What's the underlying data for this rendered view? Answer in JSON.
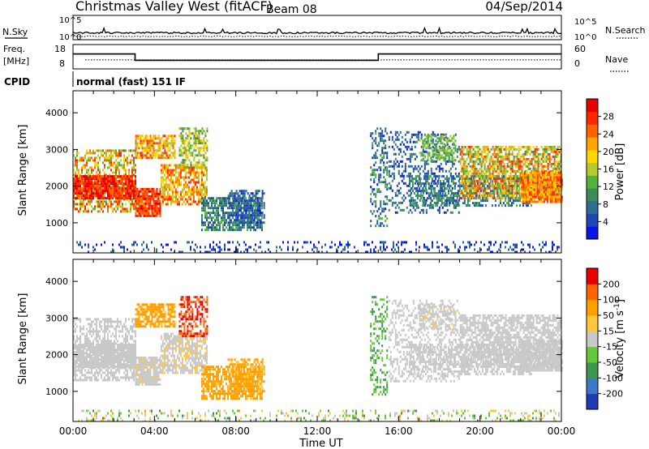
{
  "header": {
    "station": "Christmas Valley West (fitACF)",
    "beam": "Beam 08",
    "date": "04/Sep/2014"
  },
  "noise_panel": {
    "left_label": "N.Sky",
    "right_label": "N.Search",
    "left_ticks": [
      "10^5",
      "10^0"
    ],
    "right_ticks": [
      "10^5",
      "10^0"
    ]
  },
  "freq_panel": {
    "left_label_1": "Freq.",
    "left_label_2": "[MHz]",
    "right_label": "Nave",
    "left_ticks": [
      "18",
      "8"
    ],
    "right_ticks": [
      "60",
      "0"
    ],
    "freq_steps": [
      {
        "from_h": 0,
        "to_h": 3.05,
        "mhz": 14.7
      },
      {
        "from_h": 3.05,
        "to_h": 15.0,
        "mhz": 10.8
      },
      {
        "from_h": 15.0,
        "to_h": 24,
        "mhz": 14.7
      }
    ],
    "nave_level": 22
  },
  "cpid": {
    "label": "CPID",
    "mode": "normal (fast) 151 IF"
  },
  "chart_data": [
    {
      "type": "heatmap",
      "panel": "power",
      "ylabel": "Slant Range [km]",
      "xlabel": "",
      "x_range_hours": [
        0,
        24
      ],
      "ylim": [
        180,
        4600
      ],
      "yticks": [
        "1000",
        "2000",
        "3000",
        "4000"
      ],
      "colorbar_title": "Power [dB]",
      "colorbar_ticks": [
        "28",
        "24",
        "20",
        "16",
        "12",
        "8",
        "4"
      ],
      "colorbar_colors": [
        "#0a14e6",
        "#1e46b4",
        "#2d6e96",
        "#3c8c5a",
        "#50b43c",
        "#b4cc2a",
        "#ffd700",
        "#ffa500",
        "#ff6400",
        "#ff2800",
        "#e60000"
      ]
    },
    {
      "type": "heatmap",
      "panel": "velocity",
      "ylabel": "Slant Range [km]",
      "xlabel": "Time UT",
      "x_range_hours": [
        0,
        24
      ],
      "ylim": [
        180,
        4600
      ],
      "xticks": [
        "00:00",
        "04:00",
        "08:00",
        "12:00",
        "16:00",
        "20:00",
        "00:00"
      ],
      "yticks": [
        "1000",
        "2000",
        "3000",
        "4000"
      ],
      "colorbar_title": "Velocity [m s",
      "colorbar_title_sup": "-1",
      "colorbar_title_end": "]",
      "colorbar_ticks": [
        "200",
        "100",
        "50",
        "15",
        "-15",
        "-50",
        "-100",
        "-200"
      ],
      "colorbar_colors": [
        "#1e3cb4",
        "#3c78c8",
        "#3c9650",
        "#64c83c",
        "#c8c8c8",
        "#ffc83c",
        "#ffa000",
        "#ff6400",
        "#e60000"
      ]
    }
  ],
  "echo_regions": [
    {
      "t0": 0.0,
      "t1": 3.05,
      "r0": 1300,
      "r1": 3000,
      "d": 0.55,
      "p0": 0.35,
      "p1": 0.9,
      "v0": -0.1,
      "v1": 0.1
    },
    {
      "t0": 0.0,
      "t1": 3.05,
      "r0": 1700,
      "r1": 2300,
      "d": 0.9,
      "p0": 0.75,
      "p1": 1.0,
      "v0": -0.1,
      "v1": 0.1
    },
    {
      "t0": 3.05,
      "t1": 4.3,
      "r0": 1200,
      "r1": 1950,
      "d": 0.9,
      "p0": 0.7,
      "p1": 1.0,
      "v0": -0.15,
      "v1": 0.1
    },
    {
      "t0": 4.3,
      "t1": 6.6,
      "r0": 1500,
      "r1": 2600,
      "d": 0.7,
      "p0": 0.45,
      "p1": 0.9,
      "v0": -0.2,
      "v1": 0.1
    },
    {
      "t0": 3.05,
      "t1": 5.0,
      "r0": 2800,
      "r1": 3400,
      "d": 0.75,
      "p0": 0.45,
      "p1": 0.85,
      "v0": -0.6,
      "v1": -0.35
    },
    {
      "t0": 5.2,
      "t1": 6.6,
      "r0": 2500,
      "r1": 3600,
      "d": 0.55,
      "p0": 0.3,
      "p1": 0.7,
      "v0": -1.0,
      "v1": -0.75
    },
    {
      "t0": 6.3,
      "t1": 9.3,
      "r0": 800,
      "r1": 1700,
      "d": 0.7,
      "p0": 0.1,
      "p1": 0.45,
      "v0": -0.6,
      "v1": -0.35
    },
    {
      "t0": 7.6,
      "t1": 9.4,
      "r0": 1000,
      "r1": 1900,
      "d": 0.55,
      "p0": 0.05,
      "p1": 0.3,
      "v0": -0.55,
      "v1": -0.3
    },
    {
      "t0": 14.6,
      "t1": 15.4,
      "r0": 900,
      "r1": 3600,
      "d": 0.35,
      "p0": 0.05,
      "p1": 0.45,
      "v0": 0.25,
      "v1": 0.5
    },
    {
      "t0": 15.5,
      "t1": 19.0,
      "r0": 1300,
      "r1": 3500,
      "d": 0.3,
      "p0": 0.05,
      "p1": 0.35,
      "v0": -0.1,
      "v1": 0.1
    },
    {
      "t0": 16.5,
      "t1": 22.5,
      "r0": 1500,
      "r1": 2300,
      "d": 0.55,
      "p0": 0.1,
      "p1": 0.4,
      "v0": -0.1,
      "v1": 0.1
    },
    {
      "t0": 17.0,
      "t1": 18.8,
      "r0": 2700,
      "r1": 3400,
      "d": 0.55,
      "p0": 0.3,
      "p1": 0.55,
      "v0": -0.15,
      "v1": 0.1
    },
    {
      "t0": 19.0,
      "t1": 24.0,
      "r0": 1700,
      "r1": 3100,
      "d": 0.7,
      "p0": 0.3,
      "p1": 0.9,
      "v0": -0.1,
      "v1": 0.1
    },
    {
      "t0": 22.0,
      "t1": 24.0,
      "r0": 1600,
      "r1": 2400,
      "d": 0.85,
      "p0": 0.55,
      "p1": 0.9,
      "v0": -0.1,
      "v1": 0.1
    },
    {
      "t0": 0.0,
      "t1": 24.0,
      "r0": 200,
      "r1": 500,
      "d": 0.22,
      "p0": 0.0,
      "p1": 0.25,
      "v0": -0.4,
      "v1": 0.45
    }
  ]
}
